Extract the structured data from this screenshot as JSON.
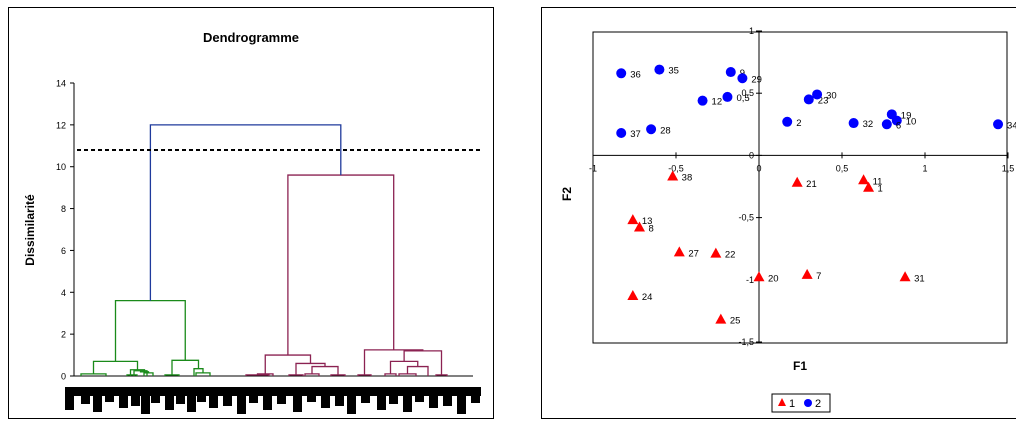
{
  "chart_data": [
    {
      "type": "dendrogram",
      "title": "Dendrogramme",
      "ylabel": "Dissimilarité",
      "ylim": [
        0,
        14
      ],
      "yticks": [
        0,
        2,
        4,
        6,
        8,
        10,
        12,
        14
      ],
      "cut_level": 10.8,
      "colors": {
        "root": "#1f3a9c",
        "cluster1": "#1a8a1a",
        "cluster2": "#8b2252"
      },
      "links": [
        {
          "x1": 80,
          "x2": 105,
          "h": 0.1,
          "c": "cluster1"
        },
        {
          "x1": 126,
          "x2": 136,
          "h": 0.05,
          "c": "cluster1"
        },
        {
          "x1": 133,
          "x2": 146,
          "h": 0.25,
          "c": "cluster1"
        },
        {
          "x1": 143,
          "x2": 152,
          "h": 0.15,
          "c": "cluster1"
        },
        {
          "x1": 139.5,
          "x2": 147.5,
          "h": 0.2,
          "c": "cluster1"
        },
        {
          "x1": 129.5,
          "x2": 143.5,
          "h": 0.3,
          "c": "cluster1"
        },
        {
          "x1": 92.5,
          "x2": 136.5,
          "h": 0.7,
          "c": "cluster1"
        },
        {
          "x1": 164,
          "x2": 178,
          "h": 0.05,
          "c": "cluster1"
        },
        {
          "x1": 195,
          "x2": 209,
          "h": 0.15,
          "c": "cluster1"
        },
        {
          "x1": 193,
          "x2": 202,
          "h": 0.35,
          "c": "cluster1"
        },
        {
          "x1": 171,
          "x2": 197.5,
          "h": 0.75,
          "c": "cluster1"
        },
        {
          "x1": 114.5,
          "x2": 184.25,
          "h": 3.6,
          "c": "cluster1"
        },
        {
          "x1": 245,
          "x2": 268,
          "h": 0.05,
          "c": "cluster2"
        },
        {
          "x1": 256.5,
          "x2": 272,
          "h": 0.1,
          "c": "cluster2"
        },
        {
          "x1": 288,
          "x2": 302,
          "h": 0.05,
          "c": "cluster2"
        },
        {
          "x1": 304,
          "x2": 318,
          "h": 0.1,
          "c": "cluster2"
        },
        {
          "x1": 330,
          "x2": 344,
          "h": 0.05,
          "c": "cluster2"
        },
        {
          "x1": 311,
          "x2": 337,
          "h": 0.45,
          "c": "cluster2"
        },
        {
          "x1": 295,
          "x2": 324,
          "h": 0.6,
          "c": "cluster2"
        },
        {
          "x1": 264.25,
          "x2": 309.5,
          "h": 1.0,
          "c": "cluster2"
        },
        {
          "x1": 357,
          "x2": 370,
          "h": 0.05,
          "c": "cluster2"
        },
        {
          "x1": 384,
          "x2": 395,
          "h": 0.1,
          "c": "cluster2"
        },
        {
          "x1": 398,
          "x2": 415,
          "h": 0.1,
          "c": "cluster2"
        },
        {
          "x1": 406.5,
          "x2": 427,
          "h": 0.45,
          "c": "cluster2"
        },
        {
          "x1": 389.5,
          "x2": 416.75,
          "h": 0.7,
          "c": "cluster2"
        },
        {
          "x1": 435,
          "x2": 446,
          "h": 0.05,
          "c": "cluster2"
        },
        {
          "x1": 403.125,
          "x2": 440.5,
          "h": 1.2,
          "c": "cluster2"
        },
        {
          "x1": 363.5,
          "x2": 421.8,
          "h": 1.25,
          "c": "cluster2"
        },
        {
          "x1": 286.9,
          "x2": 392.7,
          "h": 9.6,
          "c": "cluster2"
        },
        {
          "x1": 149.4,
          "x2": 339.8,
          "h": 12.0,
          "c": "root"
        }
      ]
    },
    {
      "type": "scatter",
      "xlabel": "F1",
      "ylabel": "F2",
      "xlim": [
        -1,
        1.5
      ],
      "ylim": [
        -1.5,
        1
      ],
      "xticks": [
        "-1",
        "-0,5",
        "0",
        "0,5",
        "1",
        "1,5"
      ],
      "yticks": [
        "1",
        "0,5",
        "0",
        "-0,5",
        "-1",
        "-1,5"
      ],
      "legend": [
        {
          "label": "1",
          "marker": "triangle",
          "color": "#ff0000"
        },
        {
          "label": "2",
          "marker": "circle",
          "color": "#0000ff"
        }
      ],
      "series": [
        {
          "name": "1",
          "marker": "triangle",
          "color": "#ff0000",
          "points": [
            {
              "x": -0.52,
              "y": -0.17,
              "label": "38"
            },
            {
              "x": 0.23,
              "y": -0.22,
              "label": "21"
            },
            {
              "x": 0.63,
              "y": -0.2,
              "label": "11"
            },
            {
              "x": 0.66,
              "y": -0.26,
              "label": "1"
            },
            {
              "x": -0.76,
              "y": -0.52,
              "label": "13"
            },
            {
              "x": -0.72,
              "y": -0.58,
              "label": "8"
            },
            {
              "x": -0.48,
              "y": -0.78,
              "label": "27"
            },
            {
              "x": -0.26,
              "y": -0.79,
              "label": "22"
            },
            {
              "x": 0.0,
              "y": -0.98,
              "label": "20"
            },
            {
              "x": 0.29,
              "y": -0.96,
              "label": "7"
            },
            {
              "x": 0.88,
              "y": -0.98,
              "label": "31"
            },
            {
              "x": -0.76,
              "y": -1.13,
              "label": "24"
            },
            {
              "x": -0.23,
              "y": -1.32,
              "label": "25"
            }
          ]
        },
        {
          "name": "2",
          "marker": "circle",
          "color": "#0000ff",
          "points": [
            {
              "x": -0.83,
              "y": 0.66,
              "label": "36"
            },
            {
              "x": -0.6,
              "y": 0.69,
              "label": "35"
            },
            {
              "x": -0.17,
              "y": 0.67,
              "label": "9"
            },
            {
              "x": -0.1,
              "y": 0.62,
              "label": "29"
            },
            {
              "x": -0.19,
              "y": 0.47,
              "label": "0,5"
            },
            {
              "x": -0.34,
              "y": 0.44,
              "label": "12"
            },
            {
              "x": 0.3,
              "y": 0.45,
              "label": "23"
            },
            {
              "x": 0.35,
              "y": 0.49,
              "label": "30"
            },
            {
              "x": 0.8,
              "y": 0.33,
              "label": "19"
            },
            {
              "x": 0.83,
              "y": 0.28,
              "label": "10"
            },
            {
              "x": 0.77,
              "y": 0.25,
              "label": "6"
            },
            {
              "x": 0.57,
              "y": 0.26,
              "label": "32"
            },
            {
              "x": 0.17,
              "y": 0.27,
              "label": "2"
            },
            {
              "x": -0.65,
              "y": 0.21,
              "label": "28"
            },
            {
              "x": -0.83,
              "y": 0.18,
              "label": "37"
            },
            {
              "x": 1.44,
              "y": 0.25,
              "label": "34"
            }
          ]
        }
      ]
    }
  ]
}
